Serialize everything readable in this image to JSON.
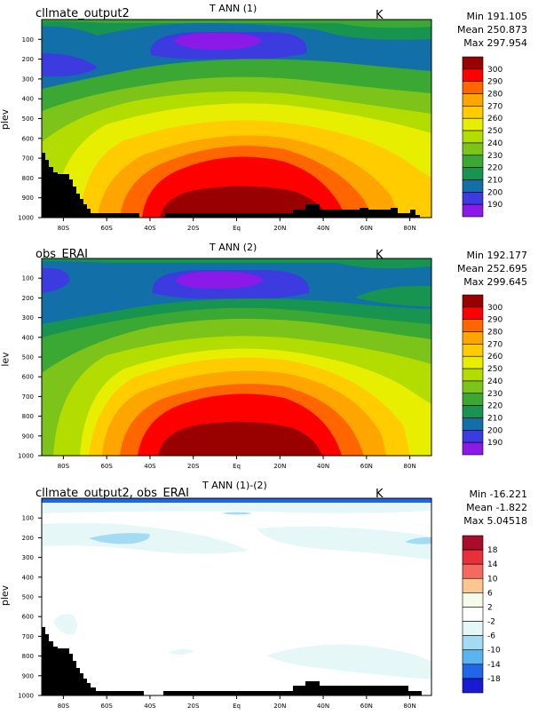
{
  "chart_data": [
    {
      "type": "contour",
      "panel": "1",
      "left_title": "cllmate_output2",
      "title": "T ANN (1)",
      "units": "K",
      "ylabel": "plev",
      "stats": {
        "min_label": "Min 191.105",
        "mean_label": "Mean 250.873",
        "max_label": "Max 297.954"
      },
      "x_ticks": [
        "80S",
        "60S",
        "40S",
        "20S",
        "Eq",
        "20N",
        "40N",
        "60N",
        "80N"
      ],
      "y_ticks": [
        "100",
        "200",
        "300",
        "400",
        "500",
        "600",
        "700",
        "800",
        "900",
        "1000"
      ],
      "legend_levels": [
        "300",
        "290",
        "280",
        "270",
        "260",
        "250",
        "240",
        "230",
        "220",
        "210",
        "200",
        "190"
      ],
      "legend_colors": [
        "#990000",
        "#ff0000",
        "#ff6600",
        "#ffa500",
        "#ffcc00",
        "#e8ee00",
        "#b3dc00",
        "#7cc41a",
        "#3aa832",
        "#169450",
        "#136fa8",
        "#3b3be0",
        "#8b1ae8"
      ],
      "has_topography_mask": true
    },
    {
      "type": "contour",
      "panel": "2",
      "left_title": "obs_ERAI",
      "title": "T ANN (2)",
      "units": "K",
      "ylabel": "lev",
      "stats": {
        "min_label": "Min 192.177",
        "mean_label": "Mean 252.695",
        "max_label": "Max 299.645"
      },
      "x_ticks": [
        "80S",
        "60S",
        "40S",
        "20S",
        "Eq",
        "20N",
        "40N",
        "60N",
        "80N"
      ],
      "y_ticks": [
        "100",
        "200",
        "300",
        "400",
        "500",
        "600",
        "700",
        "800",
        "900",
        "1000"
      ],
      "legend_levels": [
        "300",
        "290",
        "280",
        "270",
        "260",
        "250",
        "240",
        "230",
        "220",
        "210",
        "200",
        "190"
      ],
      "legend_colors": [
        "#990000",
        "#ff0000",
        "#ff6600",
        "#ffa500",
        "#ffcc00",
        "#e8ee00",
        "#b3dc00",
        "#7cc41a",
        "#3aa832",
        "#169450",
        "#136fa8",
        "#3b3be0",
        "#8b1ae8"
      ],
      "has_topography_mask": false
    },
    {
      "type": "contour",
      "panel": "diff",
      "left_title": "cllmate_output2, obs_ERAI",
      "title": "T ANN (1)-(2)",
      "units": "K",
      "ylabel": "plev",
      "stats": {
        "min_label": "Min -16.221",
        "mean_label": "Mean -1.822",
        "max_label": "Max 5.04518"
      },
      "x_ticks": [
        "80S",
        "60S",
        "40S",
        "20S",
        "Eq",
        "20N",
        "40N",
        "60N",
        "80N"
      ],
      "y_ticks": [
        "100",
        "200",
        "300",
        "400",
        "500",
        "600",
        "700",
        "800",
        "900",
        "1000"
      ],
      "legend_levels": [
        "18",
        "14",
        "10",
        "6",
        "2",
        "-2",
        "-6",
        "-10",
        "-14",
        "-18"
      ],
      "legend_colors": [
        "#a80d2a",
        "#e8303a",
        "#f46a60",
        "#fcc690",
        "#f5fbe8",
        "#ffffff",
        "#e6f7f8",
        "#a3dcf2",
        "#5ab4f0",
        "#2266e8",
        "#1a1ad0"
      ],
      "has_topography_mask": true
    }
  ]
}
